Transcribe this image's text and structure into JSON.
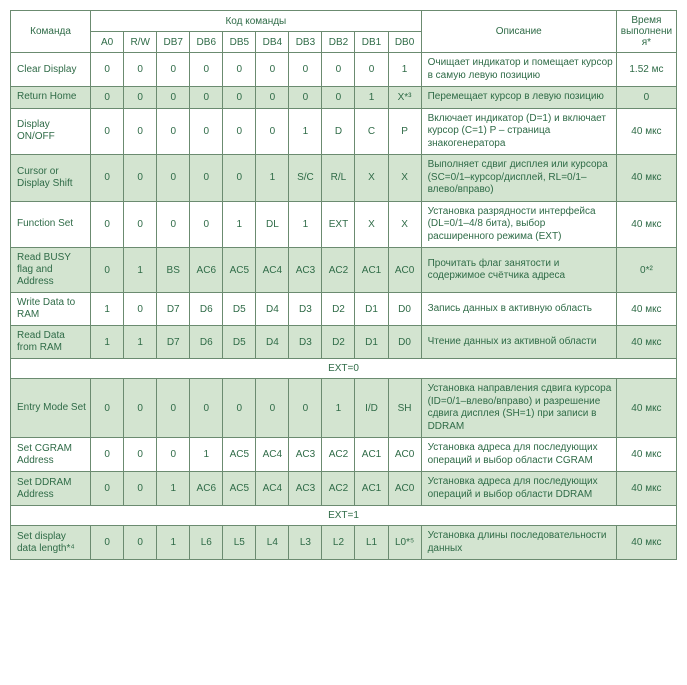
{
  "colors": {
    "border": "#6b8b70",
    "text": "#2f6b47",
    "rowAlt": "#d3e4d0",
    "rowNorm": "#ffffff"
  },
  "fontSizes": {
    "header": 10,
    "cell": 10
  },
  "header": {
    "cmd": "Команда",
    "codeGroup": "Код команды",
    "desc": "Описание",
    "time": "Время выполнения*",
    "bits": [
      "A0",
      "R/W",
      "DB7",
      "DB6",
      "DB5",
      "DB4",
      "DB3",
      "DB2",
      "DB1",
      "DB0"
    ]
  },
  "rows": [
    {
      "name": "Clear Display",
      "bits": [
        "0",
        "0",
        "0",
        "0",
        "0",
        "0",
        "0",
        "0",
        "0",
        "1"
      ],
      "desc": "Очищает индикатор и помещает курсор в самую левую позицию",
      "time": "1.52 мс",
      "alt": false
    },
    {
      "name": "Return Home",
      "bits": [
        "0",
        "0",
        "0",
        "0",
        "0",
        "0",
        "0",
        "0",
        "1",
        "X*³"
      ],
      "desc": "Перемещает курсор в левую позицию",
      "time": "0",
      "alt": true
    },
    {
      "name": "Display ON/OFF",
      "bits": [
        "0",
        "0",
        "0",
        "0",
        "0",
        "0",
        "1",
        "D",
        "C",
        "P"
      ],
      "desc": "Включает индикатор (D=1) и включает курсор (C=1)\nP – страница знакогенератора",
      "time": "40 мкс",
      "alt": false
    },
    {
      "name": "Cursor or Display Shift",
      "bits": [
        "0",
        "0",
        "0",
        "0",
        "0",
        "1",
        "S/C",
        "R/L",
        "X",
        "X"
      ],
      "desc": "Выполняет сдвиг дисплея или курсора (SC=0/1–курсор/дисплей, RL=0/1–влево/вправо)",
      "time": "40 мкс",
      "alt": true
    },
    {
      "name": "Function Set",
      "bits": [
        "0",
        "0",
        "0",
        "0",
        "1",
        "DL",
        "1",
        "EXT",
        "X",
        "X"
      ],
      "desc": "Установка разрядности интерфейса (DL=0/1–4/8 бита), выбор расширенного режима (EXT)",
      "time": "40 мкс",
      "alt": false
    },
    {
      "name": "Read BUSY flag and Address",
      "bits": [
        "0",
        "1",
        "BS",
        "AC6",
        "AC5",
        "AC4",
        "AC3",
        "AC2",
        "AC1",
        "AC0"
      ],
      "desc": "Прочитать флаг занятости и содержимое счётчика адреса",
      "time": "0*²",
      "alt": true
    },
    {
      "name": "Write Data to RAM",
      "bits": [
        "1",
        "0",
        "D7",
        "D6",
        "D5",
        "D4",
        "D3",
        "D2",
        "D1",
        "D0"
      ],
      "desc": "Запись данных в активную область",
      "time": "40 мкс",
      "alt": false
    },
    {
      "name": "Read Data from RAM",
      "bits": [
        "1",
        "1",
        "D7",
        "D6",
        "D5",
        "D4",
        "D3",
        "D2",
        "D1",
        "D0"
      ],
      "desc": "Чтение данных из активной области",
      "time": "40 мкс",
      "alt": true
    }
  ],
  "sep1": "EXT=0",
  "rows2": [
    {
      "name": "Entry Mode Set",
      "bits": [
        "0",
        "0",
        "0",
        "0",
        "0",
        "0",
        "0",
        "1",
        "I/D",
        "SH"
      ],
      "desc": "Установка направления сдвига курсора (ID=0/1–влево/вправо) и разрешение сдвига дисплея (SH=1) при записи в DDRAM",
      "time": "40 мкс",
      "alt": true
    },
    {
      "name": "Set CGRAM Address",
      "bits": [
        "0",
        "0",
        "0",
        "1",
        "AC5",
        "AC4",
        "AC3",
        "AC2",
        "AC1",
        "AC0"
      ],
      "desc": "Установка адреса для последующих операций и выбор области CGRAM",
      "time": "40 мкс",
      "alt": false
    },
    {
      "name": "Set DDRAM Address",
      "bits": [
        "0",
        "0",
        "1",
        "AC6",
        "AC5",
        "AC4",
        "AC3",
        "AC2",
        "AC1",
        "AC0"
      ],
      "desc": "Установка адреса для последующих операций и выбор области DDRAM",
      "time": "40 мкс",
      "alt": true
    }
  ],
  "sep2": "EXT=1",
  "rows3": [
    {
      "name": "Set display data length*⁴",
      "bits": [
        "0",
        "0",
        "1",
        "L6",
        "L5",
        "L4",
        "L3",
        "L2",
        "L1",
        "L0*⁵"
      ],
      "desc": "Установка длины последовательности данных",
      "time": "40 мкс",
      "alt": true
    }
  ]
}
